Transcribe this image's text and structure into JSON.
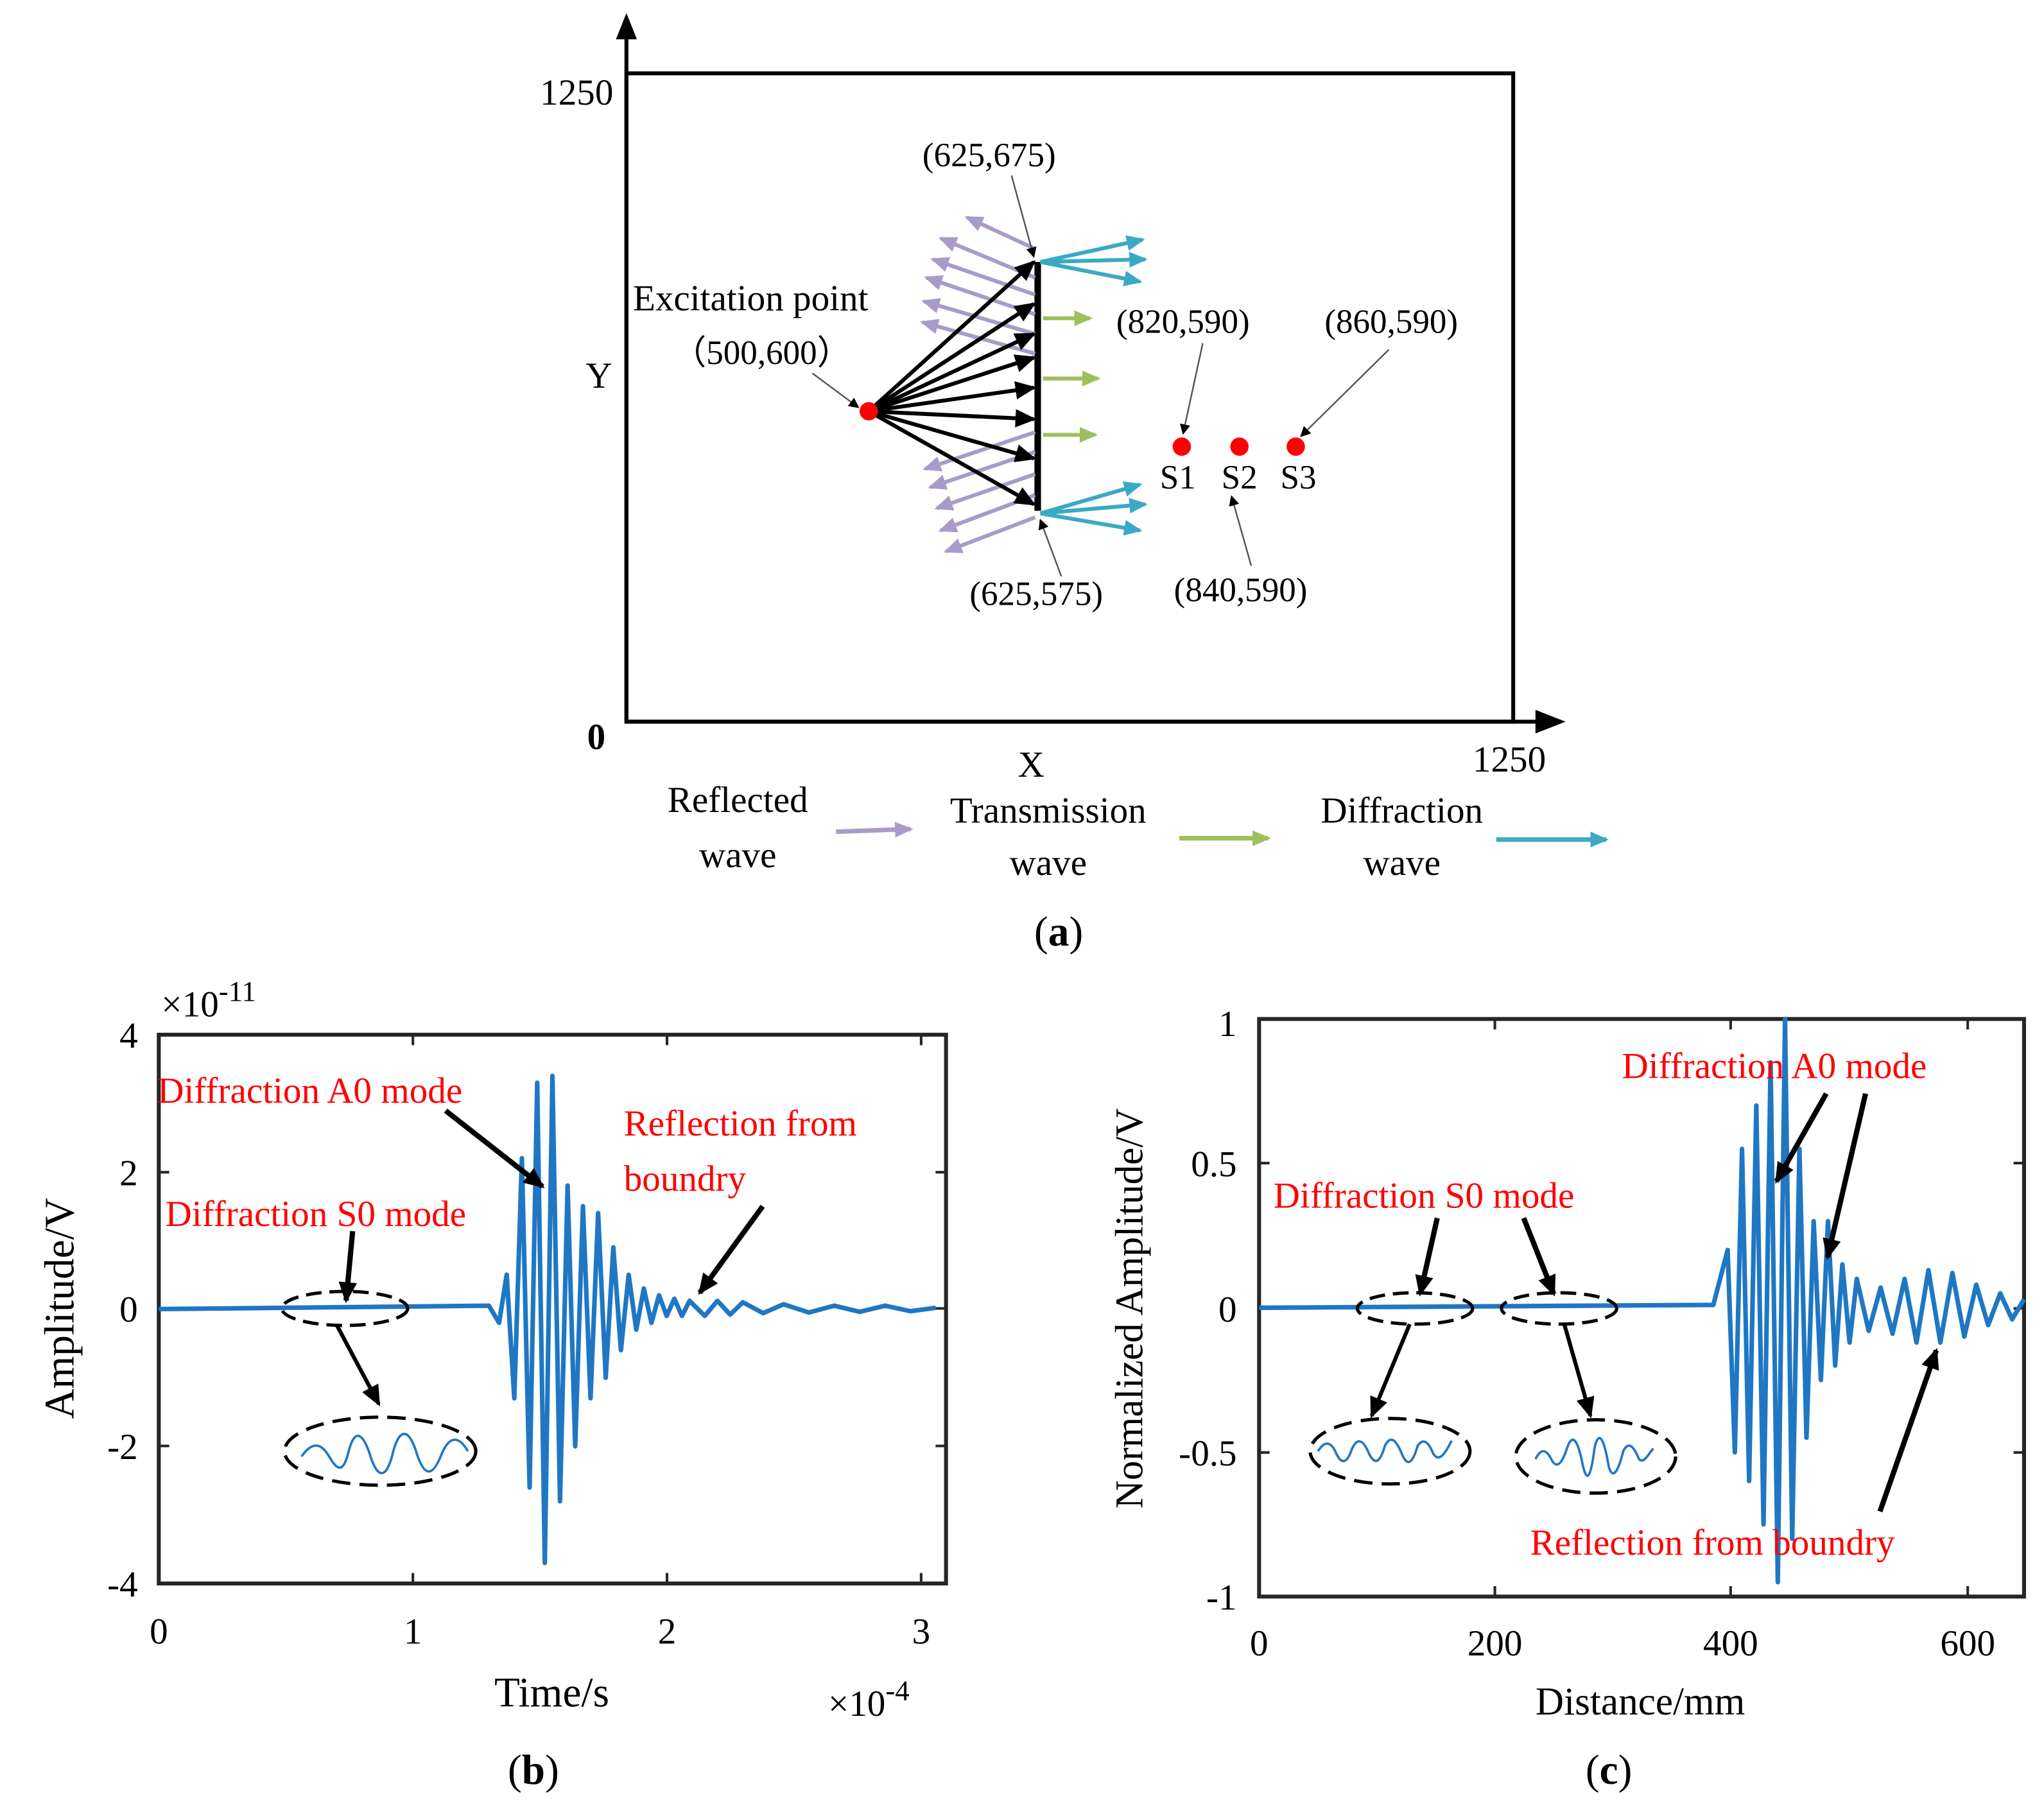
{
  "panel_a": {
    "caption_letter": "a",
    "x_label": "X",
    "y_label": "Y",
    "origin_label": "0",
    "x_max_label": "1250",
    "y_max_label": "1250",
    "excitation_label": "Excitation point",
    "excitation_coord": "（500,600）",
    "crack_top_coord": "(625,675)",
    "crack_bottom_coord": "(625,575)",
    "sensors": [
      {
        "name": "S1",
        "coord": "(820,590)",
        "x": 820,
        "y": 590
      },
      {
        "name": "S2",
        "coord": "(840,590)",
        "x": 840,
        "y": 590
      },
      {
        "name": "S3",
        "coord": "(860,590)",
        "x": 860,
        "y": 590
      }
    ],
    "legend": [
      {
        "line1": "Reflected",
        "line2": "wave",
        "color": "#a99bc9"
      },
      {
        "line1": "Transmission",
        "line2": "wave",
        "color": "#9dbf5e"
      },
      {
        "line1": "Diffraction",
        "line2": "wave",
        "color": "#3ba9c4"
      }
    ],
    "colors": {
      "point": "#ff0000",
      "arrow": "#000000"
    }
  },
  "panel_b": {
    "caption_letter": "b",
    "ylabel": "Amplitude/V",
    "xlabel": "Time/s",
    "y_exponent_base": "×10",
    "y_exponent": "-11",
    "x_exponent_base": "×10",
    "x_exponent": "-4",
    "y_ticks": [
      "4",
      "2",
      "0",
      "-2",
      "-4"
    ],
    "x_ticks": [
      "0",
      "1",
      "2",
      "3"
    ],
    "annotations": {
      "a0": "Diffraction A0 mode",
      "s0": "Diffraction S0 mode",
      "refl_line1": "Reflection from",
      "refl_line2": "boundry"
    }
  },
  "panel_c": {
    "caption_letter": "c",
    "ylabel": "Normalized Amplitude/V",
    "xlabel": "Distance/mm",
    "y_ticks": [
      "1",
      "0.5",
      "0",
      "-0.5",
      "-1"
    ],
    "x_ticks": [
      "0",
      "200",
      "400",
      "600"
    ],
    "annotations": {
      "a0": "Diffraction A0 mode",
      "s0": "Diffraction S0 mode",
      "refl": "Reflection from boundry"
    }
  },
  "chart_data": [
    {
      "type": "line",
      "xlabel": "Time/s",
      "ylabel": "Amplitude/V",
      "x_scale": "×10^-4",
      "y_scale": "×10^-11",
      "xlim": [
        0,
        3.1
      ],
      "ylim": [
        -4,
        4
      ],
      "grid": false,
      "series": [
        {
          "color": "#1f77c4",
          "x": [
            0,
            1.3,
            1.34,
            1.37,
            1.4,
            1.43,
            1.46,
            1.49,
            1.52,
            1.55,
            1.58,
            1.61,
            1.64,
            1.67,
            1.7,
            1.73,
            1.76,
            1.79,
            1.82,
            1.85,
            1.88,
            1.91,
            1.94,
            1.97,
            2.0,
            2.03,
            2.06,
            2.09,
            2.15,
            2.2,
            2.25,
            2.3,
            2.38,
            2.46,
            2.56,
            2.66,
            2.76,
            2.86,
            2.96,
            3.06
          ],
          "y": [
            0,
            0.05,
            -0.2,
            0.5,
            -1.3,
            2.2,
            -2.6,
            3.3,
            -3.7,
            3.4,
            -2.8,
            1.8,
            -2.0,
            1.5,
            -1.3,
            1.4,
            -1.0,
            0.9,
            -0.6,
            0.5,
            -0.3,
            0.3,
            -0.2,
            0.2,
            -0.1,
            0.15,
            -0.1,
            0.12,
            -0.1,
            0.12,
            -0.08,
            0.1,
            -0.06,
            0.07,
            -0.05,
            0.05,
            -0.04,
            0.05,
            -0.03,
            0.02
          ]
        }
      ]
    },
    {
      "type": "line",
      "xlabel": "Distance/mm",
      "ylabel": "Normalized Amplitude/V",
      "xlim": [
        0,
        640
      ],
      "ylim": [
        -1,
        1
      ],
      "grid": false,
      "series": [
        {
          "color": "#1f77c4",
          "x": [
            0,
            380,
            392,
            398,
            404,
            410,
            416,
            422,
            428,
            434,
            440,
            446,
            452,
            458,
            464,
            470,
            476,
            482,
            488,
            494,
            500,
            510,
            520,
            530,
            540,
            550,
            560,
            570,
            580,
            590,
            600,
            610,
            620,
            630,
            640
          ],
          "y": [
            0,
            0.01,
            0.2,
            -0.5,
            0.55,
            -0.6,
            0.7,
            -0.75,
            0.85,
            -0.95,
            1.0,
            -0.8,
            0.55,
            -0.45,
            0.3,
            -0.25,
            0.3,
            -0.2,
            0.15,
            -0.12,
            0.1,
            -0.08,
            0.07,
            -0.09,
            0.1,
            -0.12,
            0.13,
            -0.12,
            0.12,
            -0.1,
            0.08,
            -0.06,
            0.05,
            -0.04,
            0.03
          ]
        }
      ]
    }
  ]
}
